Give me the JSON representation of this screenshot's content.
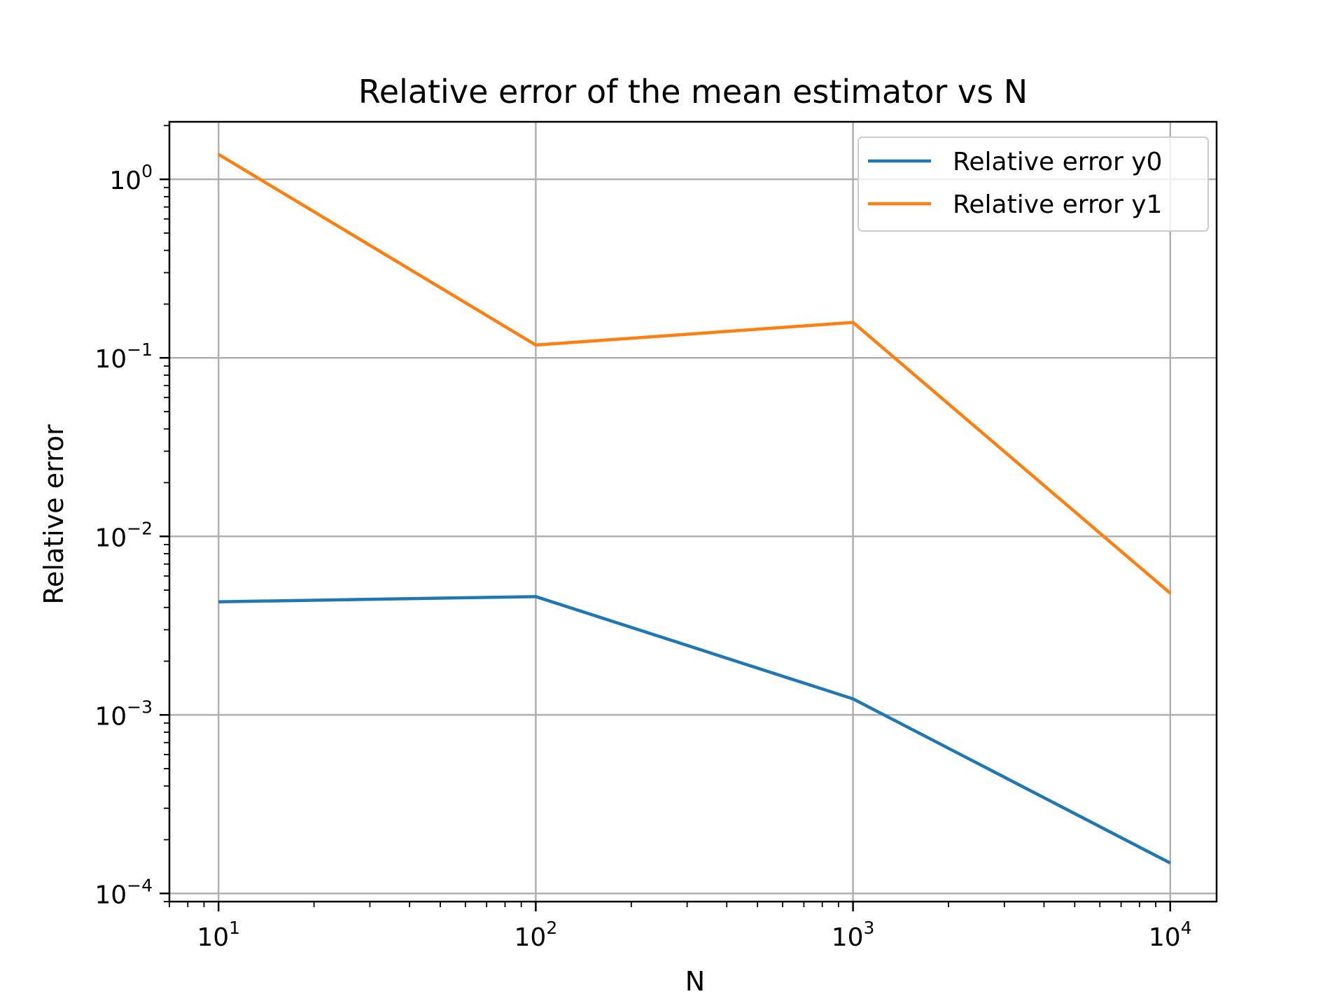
{
  "chart_data": {
    "type": "line",
    "title": "Relative error of the mean estimator vs N",
    "xlabel": "N",
    "ylabel": "Relative error",
    "xscale": "log",
    "yscale": "log",
    "xlim": [
      7,
      14000
    ],
    "ylim": [
      9e-05,
      2.1
    ],
    "x_ticks": [
      {
        "value": 10,
        "base": "10",
        "exp": "1"
      },
      {
        "value": 100,
        "base": "10",
        "exp": "2"
      },
      {
        "value": 1000,
        "base": "10",
        "exp": "3"
      },
      {
        "value": 10000,
        "base": "10",
        "exp": "4"
      }
    ],
    "y_ticks": [
      {
        "value": 1,
        "base": "10",
        "exp": "0"
      },
      {
        "value": 0.1,
        "base": "10",
        "exp": "−1"
      },
      {
        "value": 0.01,
        "base": "10",
        "exp": "−2"
      },
      {
        "value": 0.001,
        "base": "10",
        "exp": "−3"
      },
      {
        "value": 0.0001,
        "base": "10",
        "exp": "−4"
      }
    ],
    "grid": true,
    "legend_position": "top-right",
    "x": [
      10,
      100,
      1000,
      10000
    ],
    "series": [
      {
        "name": "Relative error y0",
        "color": "#1f77b4",
        "values": [
          0.0043,
          0.0046,
          0.00123,
          0.000148
        ]
      },
      {
        "name": "Relative error y1",
        "color": "#ff7f0e",
        "values": [
          1.38,
          0.118,
          0.158,
          0.0048
        ]
      }
    ]
  }
}
